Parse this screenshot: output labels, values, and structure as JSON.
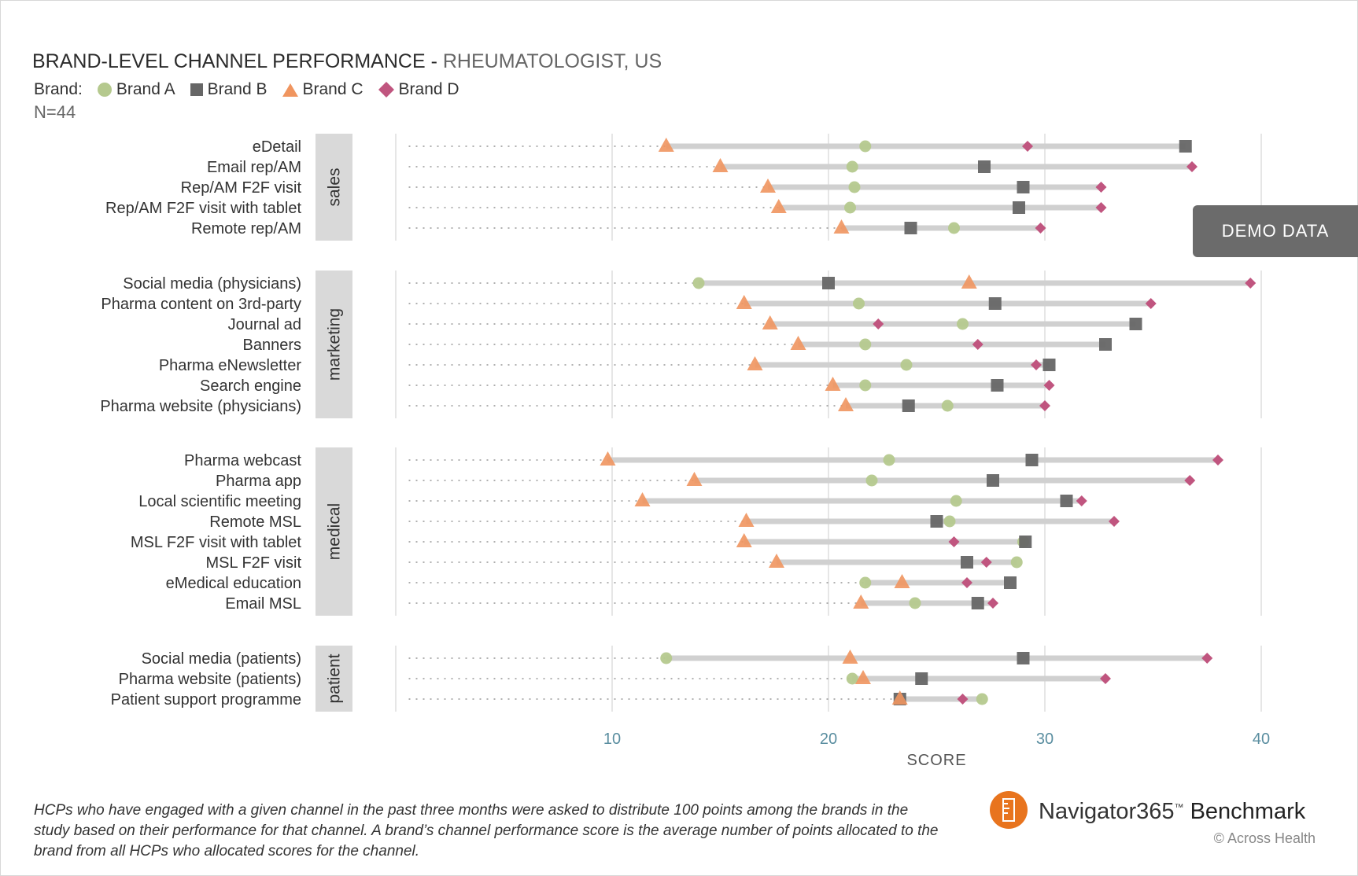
{
  "title": {
    "main": "BRAND-LEVEL CHANNEL PERFORMANCE -",
    "sub": "RHEUMATOLOGIST, US"
  },
  "legend": {
    "label": "Brand:",
    "items": [
      "Brand A",
      "Brand B",
      "Brand C",
      "Brand D"
    ]
  },
  "n_label": "N=44",
  "demo_label": "DEMO DATA",
  "footnote": "HCPs who have engaged with a given channel in the past three months were asked to distribute 100 points among the brands in the study based on their performance for that channel. A brand’s channel performance score is the average number of points allocated to the brand from all HCPs who allocated scores for the channel.",
  "brand": {
    "name_light": "Navigator365",
    "tm": "™",
    "name_bold": "Benchmark",
    "copyright": "© Across Health"
  },
  "colors": {
    "brand_a": "#b5c98e",
    "brand_b": "#666666",
    "brand_c": "#f0955f",
    "brand_d": "#c0557f",
    "bar": "#d0d0d0",
    "group_bg": "#d9d9d9",
    "tick": "#5a8ea0"
  },
  "chart_data": {
    "type": "dot-range",
    "xlabel": "SCORE",
    "xlim": [
      0,
      41
    ],
    "xticks": [
      10,
      20,
      30,
      40
    ],
    "series": [
      {
        "name": "Brand A",
        "marker": "circle"
      },
      {
        "name": "Brand B",
        "marker": "square"
      },
      {
        "name": "Brand C",
        "marker": "triangle"
      },
      {
        "name": "Brand D",
        "marker": "diamond"
      }
    ],
    "groups": [
      {
        "name": "sales",
        "rows": [
          {
            "label": "eDetail",
            "values": [
              21.7,
              36.5,
              12.5,
              29.2
            ]
          },
          {
            "label": "Email rep/AM",
            "values": [
              21.1,
              27.2,
              15.0,
              36.8
            ]
          },
          {
            "label": "Rep/AM F2F visit",
            "values": [
              21.2,
              29.0,
              17.2,
              32.6
            ]
          },
          {
            "label": "Rep/AM F2F visit with tablet",
            "values": [
              21.0,
              28.8,
              17.7,
              32.6
            ]
          },
          {
            "label": "Remote rep/AM",
            "values": [
              25.8,
              23.8,
              20.6,
              29.8
            ]
          }
        ]
      },
      {
        "name": "marketing",
        "rows": [
          {
            "label": "Social media (physicians)",
            "values": [
              14.0,
              20.0,
              26.5,
              39.5
            ]
          },
          {
            "label": "Pharma content on 3rd-party",
            "values": [
              21.4,
              27.7,
              16.1,
              34.9
            ]
          },
          {
            "label": "Journal ad",
            "values": [
              26.2,
              34.2,
              17.3,
              22.3
            ]
          },
          {
            "label": "Banners",
            "values": [
              21.7,
              32.8,
              18.6,
              26.9
            ]
          },
          {
            "label": "Pharma eNewsletter",
            "values": [
              23.6,
              30.2,
              16.6,
              29.6
            ]
          },
          {
            "label": "Search engine",
            "values": [
              21.7,
              27.8,
              20.2,
              30.2
            ]
          },
          {
            "label": "Pharma website (physicians)",
            "values": [
              25.5,
              23.7,
              20.8,
              30.0
            ]
          }
        ]
      },
      {
        "name": "medical",
        "rows": [
          {
            "label": "Pharma webcast",
            "values": [
              22.8,
              29.4,
              9.8,
              38.0
            ]
          },
          {
            "label": "Pharma app",
            "values": [
              22.0,
              27.6,
              13.8,
              36.7
            ]
          },
          {
            "label": "Local scientific meeting",
            "values": [
              25.9,
              31.0,
              11.4,
              31.7
            ]
          },
          {
            "label": "Remote MSL",
            "values": [
              25.6,
              25.0,
              16.2,
              33.2
            ]
          },
          {
            "label": "MSL F2F visit with tablet",
            "values": [
              29.0,
              29.1,
              16.1,
              25.8
            ]
          },
          {
            "label": "MSL F2F visit",
            "values": [
              28.7,
              26.4,
              17.6,
              27.3
            ]
          },
          {
            "label": "eMedical education",
            "values": [
              21.7,
              28.4,
              23.4,
              26.4
            ]
          },
          {
            "label": "Email MSL",
            "values": [
              24.0,
              26.9,
              21.5,
              27.6
            ]
          }
        ]
      },
      {
        "name": "patient",
        "rows": [
          {
            "label": "Social media (patients)",
            "values": [
              12.5,
              29.0,
              21.0,
              37.5
            ]
          },
          {
            "label": "Pharma website (patients)",
            "values": [
              21.1,
              24.3,
              21.6,
              32.8
            ]
          },
          {
            "label": "Patient support programme",
            "values": [
              27.1,
              23.3,
              23.3,
              26.2
            ]
          }
        ]
      }
    ]
  }
}
